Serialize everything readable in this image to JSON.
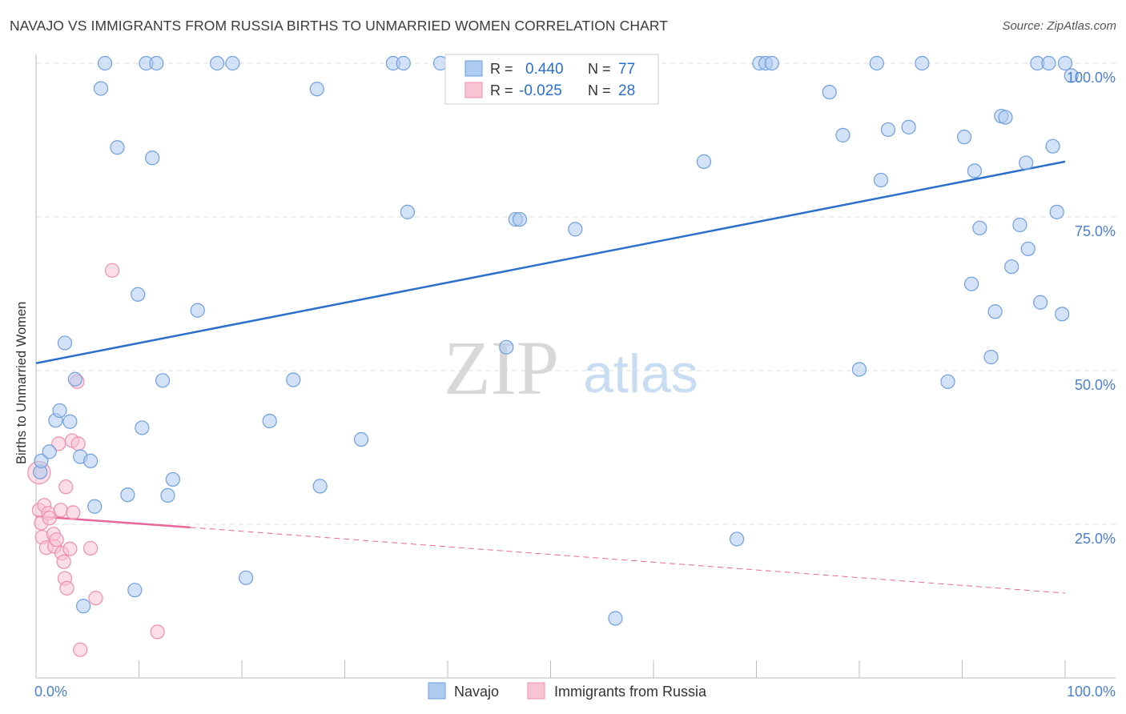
{
  "title": "NAVAJO VS IMMIGRANTS FROM RUSSIA BIRTHS TO UNMARRIED WOMEN CORRELATION CHART",
  "source": "Source: ZipAtlas.com",
  "watermark": {
    "zip": "ZIP",
    "atlas": "atlas"
  },
  "colors": {
    "navajo_fill": "#aecbf0",
    "navajo_stroke": "#6f9fdf",
    "navajo_line": "#2a6fcc",
    "russia_fill": "#f8c3d3",
    "russia_stroke": "#ee8fae",
    "russia_line": "#e8679a",
    "tick_label": "#4a7fcf",
    "grid": "#dddddd"
  },
  "legend": {
    "rows": [
      {
        "r_label": "R =",
        "r_value": "0.440",
        "n_label": "N =",
        "n_value": "77"
      },
      {
        "r_label": "R =",
        "r_value": "-0.025",
        "n_label": "N =",
        "n_value": "28"
      }
    ]
  },
  "chart_data": {
    "type": "scatter",
    "title": "NAVAJO VS IMMIGRANTS FROM RUSSIA BIRTHS TO UNMARRIED WOMEN CORRELATION CHART",
    "xlabel": "",
    "ylabel": "Births to Unmarried Women",
    "xlim": [
      0,
      100
    ],
    "ylim": [
      0,
      100
    ],
    "x_tick_labels": [
      "0.0%",
      "100.0%"
    ],
    "y_tick_labels": [
      {
        "value": 25,
        "label": "25.0%"
      },
      {
        "value": 50,
        "label": "50.0%"
      },
      {
        "value": 75,
        "label": "75.0%"
      },
      {
        "value": 100,
        "label": "100.0%"
      }
    ],
    "series": [
      {
        "name": "Navajo",
        "r": 0.44,
        "n": 77,
        "trend": {
          "x0": 0,
          "y0": 51.2,
          "x1": 100,
          "y1": 84.0,
          "dashed_to": null
        },
        "points": [
          [
            0.4,
            33.5
          ],
          [
            0.5,
            35.3
          ],
          [
            1.3,
            36.8
          ],
          [
            1.9,
            41.9
          ],
          [
            2.3,
            43.5
          ],
          [
            2.8,
            54.5
          ],
          [
            3.3,
            41.7
          ],
          [
            3.8,
            48.6
          ],
          [
            4.3,
            36.0
          ],
          [
            4.6,
            11.7
          ],
          [
            5.3,
            35.3
          ],
          [
            5.7,
            27.9
          ],
          [
            6.3,
            95.9
          ],
          [
            6.7,
            100.0
          ],
          [
            7.9,
            86.3
          ],
          [
            8.9,
            29.8
          ],
          [
            9.6,
            14.3
          ],
          [
            9.9,
            62.4
          ],
          [
            10.3,
            40.7
          ],
          [
            10.7,
            100.0
          ],
          [
            11.3,
            84.6
          ],
          [
            11.7,
            100.0
          ],
          [
            12.3,
            48.4
          ],
          [
            12.8,
            29.7
          ],
          [
            13.3,
            32.3
          ],
          [
            15.7,
            59.8
          ],
          [
            17.6,
            100.0
          ],
          [
            19.1,
            100.0
          ],
          [
            20.4,
            16.3
          ],
          [
            22.7,
            41.8
          ],
          [
            25.0,
            48.5
          ],
          [
            27.3,
            95.8
          ],
          [
            27.6,
            31.2
          ],
          [
            31.6,
            38.8
          ],
          [
            34.7,
            100.0
          ],
          [
            35.7,
            100.0
          ],
          [
            36.1,
            75.8
          ],
          [
            39.3,
            100.0
          ],
          [
            45.7,
            53.8
          ],
          [
            46.6,
            74.6
          ],
          [
            47.0,
            74.6
          ],
          [
            52.4,
            73.0
          ],
          [
            56.3,
            9.7
          ],
          [
            64.9,
            84.0
          ],
          [
            68.1,
            22.6
          ],
          [
            70.3,
            100.0
          ],
          [
            70.9,
            100.0
          ],
          [
            71.5,
            100.0
          ],
          [
            77.1,
            95.3
          ],
          [
            78.4,
            88.3
          ],
          [
            80.0,
            50.2
          ],
          [
            82.1,
            81.0
          ],
          [
            81.7,
            100.0
          ],
          [
            82.8,
            89.2
          ],
          [
            84.8,
            89.6
          ],
          [
            86.1,
            100.0
          ],
          [
            88.6,
            48.2
          ],
          [
            90.2,
            88.0
          ],
          [
            90.9,
            64.1
          ],
          [
            91.2,
            82.5
          ],
          [
            91.7,
            73.2
          ],
          [
            92.8,
            52.2
          ],
          [
            93.2,
            59.6
          ],
          [
            93.8,
            91.4
          ],
          [
            94.2,
            91.2
          ],
          [
            94.8,
            66.9
          ],
          [
            95.6,
            73.7
          ],
          [
            96.2,
            83.8
          ],
          [
            96.4,
            69.8
          ],
          [
            97.3,
            100.0
          ],
          [
            97.6,
            61.1
          ],
          [
            98.4,
            100.0
          ],
          [
            98.8,
            86.5
          ],
          [
            99.2,
            75.8
          ],
          [
            99.7,
            59.2
          ],
          [
            100.0,
            100.0
          ],
          [
            100.6,
            98.0
          ]
        ]
      },
      {
        "name": "Immigrants from Russia",
        "r": -0.025,
        "n": 28,
        "trend": {
          "x0": 0,
          "y0": 26.3,
          "x1": 15.0,
          "y1": 24.5,
          "dashed_to": {
            "x": 100,
            "y": 13.8
          }
        },
        "points": [
          [
            0.3,
            27.3
          ],
          [
            0.5,
            25.2
          ],
          [
            0.6,
            22.9
          ],
          [
            0.8,
            28.1
          ],
          [
            1.0,
            21.2
          ],
          [
            1.2,
            26.8
          ],
          [
            1.3,
            26.0
          ],
          [
            1.7,
            23.4
          ],
          [
            1.8,
            21.4
          ],
          [
            2.0,
            22.5
          ],
          [
            2.2,
            38.1
          ],
          [
            2.4,
            27.3
          ],
          [
            2.5,
            20.3
          ],
          [
            2.7,
            18.9
          ],
          [
            2.8,
            16.2
          ],
          [
            2.9,
            31.1
          ],
          [
            3.0,
            14.6
          ],
          [
            3.3,
            21.0
          ],
          [
            3.5,
            38.6
          ],
          [
            3.6,
            26.9
          ],
          [
            4.0,
            48.2
          ],
          [
            4.1,
            38.1
          ],
          [
            4.3,
            4.6
          ],
          [
            5.3,
            21.1
          ],
          [
            5.8,
            13.0
          ],
          [
            7.4,
            66.3
          ],
          [
            11.8,
            7.5
          ],
          [
            0.3,
            33.4
          ]
        ]
      }
    ],
    "legend_placement": "bottom-center",
    "stats_box_placement": "top-center"
  },
  "bottom_legend": [
    {
      "label": "Navajo"
    },
    {
      "label": "Immigrants from Russia"
    }
  ]
}
